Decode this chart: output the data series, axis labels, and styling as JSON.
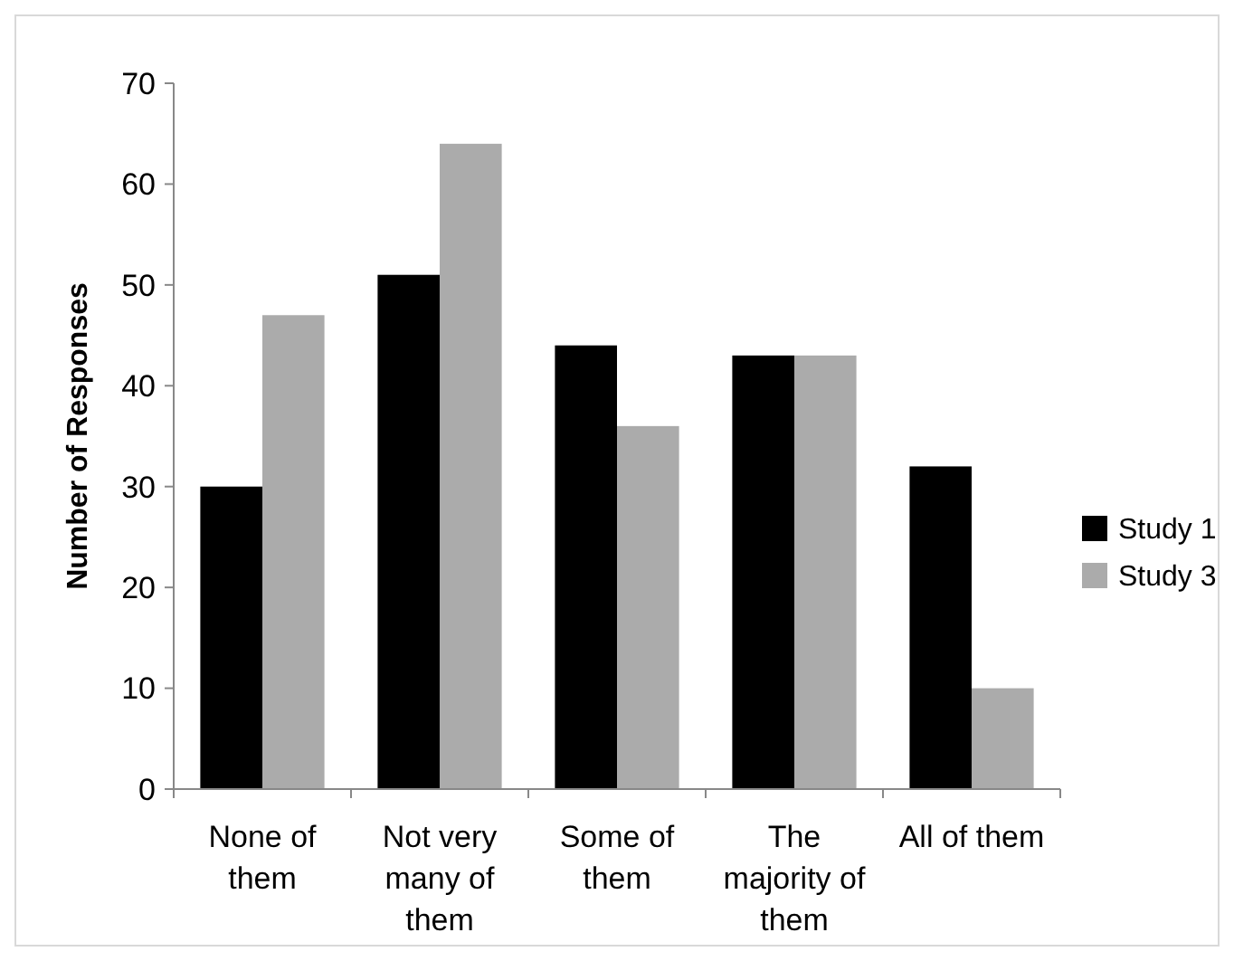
{
  "chart_data": {
    "type": "bar",
    "ylabel": "Number of Responses",
    "categories": [
      "None of them",
      "Not very many of them",
      "Some of them",
      "The majority of them",
      "All of them"
    ],
    "series": [
      {
        "name": "Study 1",
        "color": "#000000",
        "values": [
          30,
          51,
          44,
          43,
          32
        ]
      },
      {
        "name": "Study 3",
        "color": "#ababab",
        "values": [
          47,
          64,
          36,
          43,
          10
        ]
      }
    ],
    "ylim": [
      0,
      70
    ],
    "yticks": [
      0,
      10,
      20,
      30,
      40,
      50,
      60,
      70
    ],
    "legend": "right",
    "grid": false
  }
}
